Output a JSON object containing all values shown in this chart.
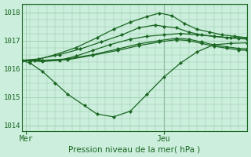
{
  "background_color": "#cceedd",
  "grid_color": "#99ccaa",
  "line_color": "#1a6622",
  "line_color_dark": "#0d3311",
  "xlabel": "Pression niveau de la mer( hPa )",
  "ylim": [
    1013.8,
    1018.3
  ],
  "yticks": [
    1014,
    1015,
    1016,
    1017,
    1018
  ],
  "xlim": [
    0,
    54
  ],
  "x_day_labels": [
    [
      "Mer",
      1
    ],
    [
      "Jeu",
      34
    ]
  ],
  "vline_x": 34,
  "lines": [
    [
      0,
      1016.3,
      2,
      1016.28,
      5,
      1016.26,
      9,
      1016.3,
      13,
      1016.45,
      17,
      1016.65,
      21,
      1016.85,
      26,
      1017.05,
      30,
      1017.15,
      34,
      1017.2,
      38,
      1017.25,
      42,
      1017.2,
      46,
      1017.15,
      50,
      1017.1,
      54,
      1017.1
    ],
    [
      0,
      1016.3,
      2,
      1016.2,
      5,
      1015.9,
      8,
      1015.5,
      11,
      1015.1,
      15,
      1014.7,
      18,
      1014.4,
      22,
      1014.3,
      26,
      1014.5,
      30,
      1015.1,
      34,
      1015.7,
      38,
      1016.2,
      42,
      1016.6,
      46,
      1016.85,
      50,
      1016.9,
      54,
      1016.92
    ],
    [
      0,
      1016.3,
      3,
      1016.3,
      8,
      1016.5,
      13,
      1016.75,
      18,
      1017.1,
      22,
      1017.4,
      26,
      1017.65,
      30,
      1017.85,
      33,
      1017.97,
      36,
      1017.88,
      39,
      1017.6,
      42,
      1017.4,
      45,
      1017.3,
      48,
      1017.2,
      51,
      1017.15,
      54,
      1017.1
    ],
    [
      0,
      1016.3,
      4,
      1016.35,
      9,
      1016.5,
      14,
      1016.7,
      19,
      1016.95,
      24,
      1017.2,
      28,
      1017.45,
      32,
      1017.55,
      34,
      1017.5,
      37,
      1017.45,
      40,
      1017.3,
      43,
      1017.2,
      46,
      1017.15,
      49,
      1017.1,
      52,
      1017.07,
      54,
      1017.05
    ],
    [
      0,
      1016.3,
      5,
      1016.3,
      11,
      1016.35,
      17,
      1016.5,
      23,
      1016.7,
      28,
      1016.88,
      33,
      1017.0,
      37,
      1017.08,
      40,
      1017.05,
      43,
      1016.95,
      46,
      1016.85,
      49,
      1016.78,
      52,
      1016.72,
      54,
      1016.7
    ],
    [
      0,
      1016.3,
      5,
      1016.29,
      11,
      1016.32,
      17,
      1016.48,
      23,
      1016.65,
      28,
      1016.82,
      33,
      1016.95,
      37,
      1017.03,
      40,
      1017.0,
      43,
      1016.9,
      46,
      1016.8,
      49,
      1016.73,
      52,
      1016.67,
      54,
      1016.65
    ]
  ],
  "marker": "D",
  "markersize": 2.2,
  "linewidth": 0.9
}
